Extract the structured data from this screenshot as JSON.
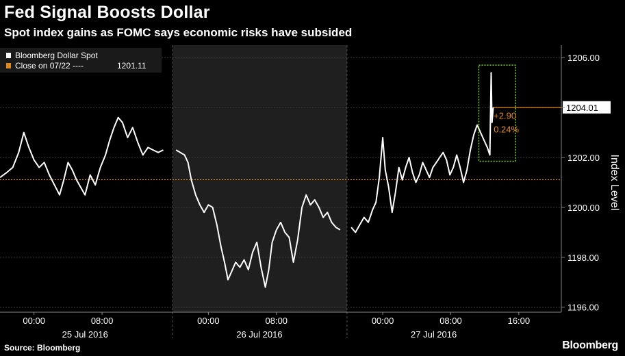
{
  "title": "Fed Signal Boosts Dollar",
  "subtitle": "Spot index gains as FOMC says economic risks have subsided",
  "source": "Source: Bloomberg",
  "brand": "Bloomberg",
  "colors": {
    "background": "#000000",
    "shaded_session": "#1f1f1f",
    "series": "#ffffff",
    "reference": "#e08a1e",
    "highlight_box": "#7fd832"
  },
  "chart_data": {
    "type": "line",
    "ylabel": "Index Level",
    "ylim": [
      1195.8,
      1206.5
    ],
    "yticks": [
      "1206.00",
      "1204.00",
      "1202.00",
      "1200.00",
      "1198.00",
      "1196.00"
    ],
    "ytick_values": [
      1206,
      1204,
      1202,
      1200,
      1198,
      1196
    ],
    "xlim": [
      0,
      66
    ],
    "xticks": [
      {
        "x": 4,
        "label": "00:00"
      },
      {
        "x": 12,
        "label": "08:00"
      },
      {
        "x": 24.5,
        "label": "00:00"
      },
      {
        "x": 32.5,
        "label": "08:00"
      },
      {
        "x": 45,
        "label": "00:00"
      },
      {
        "x": 53,
        "label": "08:00"
      },
      {
        "x": 61,
        "label": "16:00"
      }
    ],
    "days": [
      {
        "x": 10,
        "label": "25 Jul 2016"
      },
      {
        "x": 30.5,
        "label": "26 Jul 2016"
      },
      {
        "x": 51,
        "label": "27 Jul 2016"
      }
    ],
    "session_dividers": [
      20.3,
      40.8
    ],
    "shaded_session": [
      20.3,
      40.8
    ],
    "legend": [
      {
        "label": "Bloomberg Dollar Spot",
        "value": ""
      },
      {
        "label": "Close on 07/22 ----",
        "value": "1201.11"
      }
    ],
    "reference_line": {
      "name": "Close on 07/22",
      "value": 1201.11
    },
    "last_value": 1204.01,
    "last_label": "1204.01",
    "annotation": {
      "change": "+2.90",
      "percent": "0.24%"
    },
    "series": [
      {
        "name": "Bloomberg Dollar Spot",
        "segments": [
          [
            [
              0,
              1201.2
            ],
            [
              0.8,
              1201.4
            ],
            [
              1.5,
              1201.6
            ],
            [
              2.2,
              1202.2
            ],
            [
              2.8,
              1203.0
            ],
            [
              3.4,
              1202.4
            ],
            [
              4.0,
              1201.9
            ],
            [
              4.6,
              1201.6
            ],
            [
              5.2,
              1201.8
            ],
            [
              5.8,
              1201.3
            ],
            [
              6.4,
              1200.9
            ],
            [
              7.0,
              1200.5
            ],
            [
              7.5,
              1201.1
            ],
            [
              8.0,
              1201.8
            ],
            [
              8.5,
              1201.5
            ],
            [
              9.0,
              1201.1
            ],
            [
              9.5,
              1200.8
            ],
            [
              10.0,
              1200.5
            ],
            [
              10.6,
              1201.3
            ],
            [
              11.2,
              1200.9
            ],
            [
              11.8,
              1201.6
            ],
            [
              12.4,
              1202.1
            ],
            [
              12.9,
              1202.7
            ],
            [
              13.4,
              1203.2
            ],
            [
              13.9,
              1203.6
            ],
            [
              14.4,
              1203.4
            ],
            [
              15.0,
              1202.8
            ],
            [
              15.6,
              1203.2
            ],
            [
              16.2,
              1202.6
            ],
            [
              16.8,
              1202.1
            ],
            [
              17.4,
              1202.4
            ],
            [
              18.0,
              1202.3
            ],
            [
              18.6,
              1202.2
            ],
            [
              19.2,
              1202.3
            ]
          ],
          [
            [
              20.7,
              1202.3
            ],
            [
              21.2,
              1202.2
            ],
            [
              21.7,
              1202.1
            ],
            [
              22.1,
              1201.8
            ],
            [
              22.5,
              1201.1
            ],
            [
              23.0,
              1200.5
            ],
            [
              23.5,
              1200.1
            ],
            [
              24.0,
              1199.8
            ],
            [
              24.5,
              1200.1
            ],
            [
              25.0,
              1200.0
            ],
            [
              25.5,
              1199.3
            ],
            [
              26.0,
              1198.4
            ],
            [
              26.4,
              1197.8
            ],
            [
              26.8,
              1197.1
            ],
            [
              27.2,
              1197.4
            ],
            [
              27.7,
              1197.8
            ],
            [
              28.2,
              1197.6
            ],
            [
              28.7,
              1197.9
            ],
            [
              29.2,
              1197.5
            ],
            [
              29.7,
              1198.2
            ],
            [
              30.2,
              1198.6
            ],
            [
              30.7,
              1197.6
            ],
            [
              31.2,
              1196.8
            ],
            [
              31.6,
              1197.5
            ],
            [
              32.0,
              1198.6
            ],
            [
              32.5,
              1199.1
            ],
            [
              33.0,
              1199.4
            ],
            [
              33.5,
              1199.0
            ],
            [
              34.0,
              1198.8
            ],
            [
              34.5,
              1197.8
            ],
            [
              35.0,
              1198.7
            ],
            [
              35.5,
              1200.0
            ],
            [
              36.0,
              1200.5
            ],
            [
              36.5,
              1200.1
            ],
            [
              37.0,
              1200.3
            ],
            [
              37.5,
              1200.0
            ],
            [
              38.0,
              1199.6
            ],
            [
              38.5,
              1199.8
            ],
            [
              39.0,
              1199.4
            ],
            [
              39.5,
              1199.2
            ],
            [
              40.0,
              1199.1
            ]
          ],
          [
            [
              41.3,
              1199.2
            ],
            [
              41.8,
              1199.0
            ],
            [
              42.3,
              1199.3
            ],
            [
              42.8,
              1199.6
            ],
            [
              43.3,
              1199.4
            ],
            [
              43.8,
              1199.9
            ],
            [
              44.2,
              1200.2
            ],
            [
              44.6,
              1201.2
            ],
            [
              45.0,
              1202.8
            ],
            [
              45.3,
              1201.5
            ],
            [
              45.7,
              1200.8
            ],
            [
              46.1,
              1199.8
            ],
            [
              46.5,
              1200.6
            ],
            [
              46.9,
              1201.6
            ],
            [
              47.3,
              1201.1
            ],
            [
              47.7,
              1201.6
            ],
            [
              48.1,
              1202.0
            ],
            [
              48.5,
              1201.4
            ],
            [
              48.9,
              1201.0
            ],
            [
              49.3,
              1201.3
            ],
            [
              49.7,
              1201.8
            ],
            [
              50.1,
              1201.5
            ],
            [
              50.5,
              1201.2
            ],
            [
              50.9,
              1201.6
            ],
            [
              51.3,
              1201.8
            ],
            [
              51.7,
              1202.0
            ],
            [
              52.1,
              1202.2
            ],
            [
              52.5,
              1201.9
            ],
            [
              52.9,
              1201.3
            ],
            [
              53.3,
              1201.6
            ],
            [
              53.7,
              1202.1
            ],
            [
              54.1,
              1201.6
            ],
            [
              54.5,
              1201.0
            ],
            [
              54.9,
              1201.5
            ],
            [
              55.3,
              1202.3
            ],
            [
              55.7,
              1202.9
            ],
            [
              56.1,
              1203.3
            ],
            [
              56.5,
              1203.0
            ],
            [
              56.9,
              1202.7
            ],
            [
              57.3,
              1202.4
            ],
            [
              57.6,
              1202.1
            ],
            [
              57.75,
              1205.4
            ],
            [
              57.85,
              1203.4
            ],
            [
              58.0,
              1204.01
            ]
          ]
        ]
      }
    ],
    "highlight_box": {
      "x0": 56.3,
      "x1": 60.6,
      "y0": 1201.85,
      "y1": 1205.7
    }
  }
}
